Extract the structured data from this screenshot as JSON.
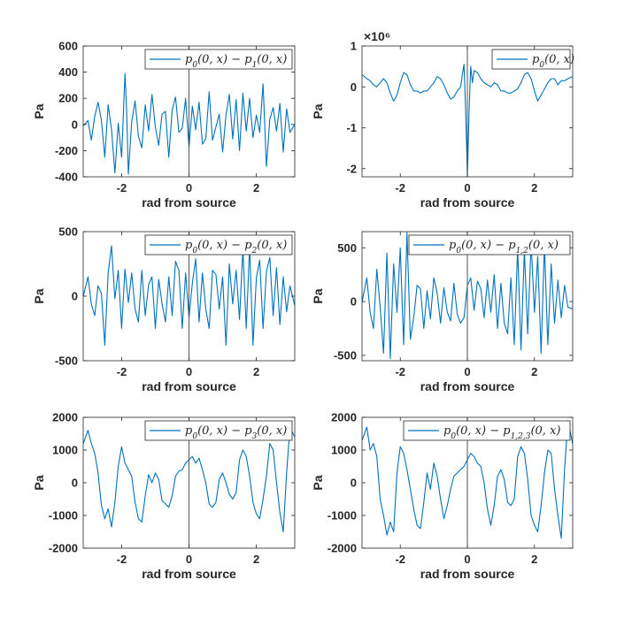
{
  "figure": {
    "background": "#ffffff",
    "line_color": "#0072BD",
    "axis_color": "#262626"
  },
  "chart_data": [
    {
      "type": "line",
      "xlabel": "rad from source",
      "ylabel": "Pa",
      "xlim": [
        -3.14159,
        3.14159
      ],
      "ylim": [
        -400,
        600
      ],
      "xticks": [
        -2,
        0,
        2
      ],
      "xtick_labels": [
        "-2",
        "0",
        "2"
      ],
      "yticks": [
        -400,
        -200,
        0,
        200,
        400,
        600
      ],
      "ytick_labels": [
        "-400",
        "-200",
        "0",
        "200",
        "400",
        "600"
      ],
      "grid": false,
      "legend_position": "top-right",
      "series": [
        {
          "name": "p0(0,x) − p1(0,x)",
          "x": [
            -3.14,
            -3.0,
            -2.9,
            -2.8,
            -2.7,
            -2.6,
            -2.5,
            -2.4,
            -2.3,
            -2.2,
            -2.1,
            -2.0,
            -1.9,
            -1.85,
            -1.8,
            -1.7,
            -1.6,
            -1.5,
            -1.4,
            -1.3,
            -1.2,
            -1.1,
            -1.0,
            -0.9,
            -0.8,
            -0.7,
            -0.6,
            -0.5,
            -0.4,
            -0.3,
            -0.2,
            -0.1,
            0.0,
            0.1,
            0.2,
            0.3,
            0.4,
            0.5,
            0.6,
            0.7,
            0.8,
            0.9,
            1.0,
            1.1,
            1.2,
            1.3,
            1.4,
            1.5,
            1.6,
            1.7,
            1.8,
            1.9,
            2.0,
            2.1,
            2.2,
            2.3,
            2.4,
            2.5,
            2.6,
            2.7,
            2.8,
            2.9,
            3.0,
            3.14
          ],
          "y": [
            -10,
            30,
            -120,
            60,
            170,
            30,
            -250,
            150,
            -40,
            -370,
            10,
            -250,
            390,
            100,
            -380,
            20,
            180,
            -90,
            -180,
            150,
            -50,
            230,
            -20,
            -160,
            80,
            100,
            -250,
            110,
            210,
            -60,
            -30,
            200,
            -180,
            140,
            -40,
            170,
            -150,
            -110,
            250,
            -120,
            -20,
            80,
            -210,
            70,
            230,
            -110,
            190,
            -200,
            240,
            -50,
            200,
            -100,
            70,
            -60,
            310,
            -320,
            40,
            130,
            -50,
            160,
            -210,
            120,
            -60,
            0
          ]
        }
      ]
    },
    {
      "type": "line",
      "xlabel": "rad from source",
      "ylabel": "Pa",
      "axis_exponent": "×10⁶",
      "xlim": [
        -3.14159,
        3.14159
      ],
      "ylim": [
        -2.2,
        1
      ],
      "xticks": [
        -2,
        0,
        2
      ],
      "xtick_labels": [
        "-2",
        "0",
        "2"
      ],
      "yticks": [
        -2,
        -1,
        0,
        1
      ],
      "ytick_labels": [
        "-2",
        "-1",
        "0",
        "1"
      ],
      "grid": false,
      "legend_position": "top-right",
      "series": [
        {
          "name": "p0(0,x)",
          "x": [
            -3.14,
            -3.0,
            -2.9,
            -2.8,
            -2.7,
            -2.6,
            -2.5,
            -2.4,
            -2.3,
            -2.2,
            -2.1,
            -2.0,
            -1.9,
            -1.8,
            -1.7,
            -1.6,
            -1.5,
            -1.4,
            -1.3,
            -1.2,
            -1.1,
            -1.0,
            -0.9,
            -0.8,
            -0.7,
            -0.6,
            -0.5,
            -0.4,
            -0.3,
            -0.2,
            -0.15,
            -0.1,
            -0.05,
            -0.02,
            0.0,
            0.02,
            0.05,
            0.1,
            0.15,
            0.2,
            0.3,
            0.4,
            0.5,
            0.6,
            0.7,
            0.8,
            0.9,
            1.0,
            1.1,
            1.2,
            1.3,
            1.4,
            1.5,
            1.6,
            1.7,
            1.8,
            1.9,
            2.0,
            2.1,
            2.2,
            2.3,
            2.4,
            2.5,
            2.6,
            2.7,
            2.8,
            2.9,
            3.0,
            3.14
          ],
          "y": [
            0.3,
            0.2,
            0.15,
            0.05,
            0.0,
            0.1,
            0.2,
            0.1,
            -0.15,
            -0.35,
            -0.2,
            0.1,
            0.35,
            0.3,
            0.05,
            -0.1,
            -0.1,
            -0.15,
            -0.1,
            -0.1,
            0.0,
            0.1,
            0.25,
            0.2,
            0.05,
            -0.15,
            -0.3,
            -0.25,
            -0.1,
            0.0,
            0.3,
            0.55,
            -0.6,
            -1.5,
            -2.2,
            -1.6,
            -0.6,
            0.5,
            0.1,
            0.4,
            0.35,
            0.2,
            0.1,
            0.05,
            0.0,
            0.1,
            0.05,
            -0.1,
            -0.1,
            -0.15,
            -0.15,
            -0.1,
            -0.05,
            0.1,
            0.3,
            0.35,
            0.2,
            -0.1,
            -0.35,
            -0.2,
            -0.05,
            0.1,
            0.2,
            0.2,
            0.05,
            0.15,
            0.15,
            0.2,
            0.25
          ]
        }
      ]
    },
    {
      "type": "line",
      "xlabel": "rad from source",
      "ylabel": "Pa",
      "xlim": [
        -3.14159,
        3.14159
      ],
      "ylim": [
        -500,
        500
      ],
      "xticks": [
        -2,
        0,
        2
      ],
      "xtick_labels": [
        "-2",
        "0",
        "2"
      ],
      "yticks": [
        -500,
        0,
        500
      ],
      "ytick_labels": [
        "-500",
        "0",
        "500"
      ],
      "grid": false,
      "legend_position": "top-right",
      "series": [
        {
          "name": "p0(0,x) − p2(0,x)",
          "x": [
            -3.14,
            -3.0,
            -2.9,
            -2.8,
            -2.7,
            -2.6,
            -2.5,
            -2.4,
            -2.3,
            -2.2,
            -2.1,
            -2.0,
            -1.9,
            -1.8,
            -1.7,
            -1.6,
            -1.5,
            -1.4,
            -1.3,
            -1.2,
            -1.1,
            -1.0,
            -0.9,
            -0.8,
            -0.7,
            -0.6,
            -0.5,
            -0.4,
            -0.3,
            -0.2,
            -0.1,
            0.0,
            0.1,
            0.2,
            0.3,
            0.4,
            0.5,
            0.6,
            0.7,
            0.8,
            0.9,
            1.0,
            1.1,
            1.2,
            1.3,
            1.4,
            1.5,
            1.6,
            1.7,
            1.8,
            1.9,
            2.0,
            2.1,
            2.2,
            2.3,
            2.4,
            2.5,
            2.6,
            2.7,
            2.8,
            2.9,
            3.0,
            3.14
          ],
          "y": [
            0,
            150,
            -60,
            -150,
            80,
            20,
            -380,
            180,
            390,
            -20,
            200,
            -250,
            210,
            -50,
            180,
            -100,
            -200,
            200,
            -150,
            90,
            150,
            -250,
            130,
            -60,
            -200,
            150,
            -150,
            270,
            200,
            -250,
            180,
            -170,
            100,
            290,
            -200,
            180,
            -100,
            -250,
            200,
            170,
            -100,
            150,
            -380,
            250,
            -60,
            200,
            -180,
            370,
            -250,
            380,
            -380,
            140,
            280,
            -250,
            190,
            300,
            -150,
            220,
            -220,
            150,
            -120,
            80,
            -70
          ]
        }
      ]
    },
    {
      "type": "line",
      "xlabel": "rad from source",
      "ylabel": "Pa",
      "xlim": [
        -3.14159,
        3.14159
      ],
      "ylim": [
        -550,
        650
      ],
      "xticks": [
        -2,
        0,
        2
      ],
      "xtick_labels": [
        "-2",
        "0",
        "2"
      ],
      "yticks": [
        -500,
        0,
        500
      ],
      "ytick_labels": [
        "-500",
        "0",
        "500"
      ],
      "grid": false,
      "legend_position": "top-right",
      "series": [
        {
          "name": "p0(0,x) − p1,2(0,x)",
          "x": [
            -3.14,
            -3.0,
            -2.9,
            -2.8,
            -2.7,
            -2.6,
            -2.5,
            -2.4,
            -2.3,
            -2.2,
            -2.1,
            -2.0,
            -1.9,
            -1.8,
            -1.7,
            -1.6,
            -1.5,
            -1.4,
            -1.3,
            -1.2,
            -1.1,
            -1.0,
            -0.9,
            -0.8,
            -0.7,
            -0.6,
            -0.5,
            -0.4,
            -0.3,
            -0.2,
            -0.1,
            0.0,
            0.1,
            0.2,
            0.3,
            0.4,
            0.5,
            0.6,
            0.7,
            0.8,
            0.9,
            1.0,
            1.1,
            1.2,
            1.3,
            1.4,
            1.5,
            1.6,
            1.7,
            1.8,
            1.9,
            2.0,
            2.1,
            2.2,
            2.3,
            2.4,
            2.5,
            2.6,
            2.7,
            2.8,
            2.9,
            3.0,
            3.14
          ],
          "y": [
            0,
            220,
            -100,
            -250,
            300,
            -50,
            -480,
            450,
            -530,
            350,
            -100,
            500,
            -400,
            640,
            -350,
            -150,
            150,
            120,
            -250,
            100,
            -160,
            220,
            80,
            -200,
            130,
            -100,
            -180,
            170,
            -120,
            -200,
            -150,
            150,
            220,
            -80,
            190,
            120,
            -150,
            200,
            -100,
            250,
            -250,
            170,
            -200,
            -300,
            220,
            -400,
            500,
            -450,
            480,
            -300,
            550,
            -100,
            420,
            -480,
            520,
            -400,
            350,
            -200,
            200,
            -150,
            150,
            -50,
            -70
          ]
        }
      ]
    },
    {
      "type": "line",
      "xlabel": "rad from source",
      "ylabel": "Pa",
      "xlim": [
        -3.14159,
        3.14159
      ],
      "ylim": [
        -2000,
        2000
      ],
      "xticks": [
        -2,
        0,
        2
      ],
      "xtick_labels": [
        "-2",
        "0",
        "2"
      ],
      "yticks": [
        -2000,
        -1000,
        0,
        1000,
        2000
      ],
      "ytick_labels": [
        "-2000",
        "-1000",
        "0",
        "1000",
        "2000"
      ],
      "grid": false,
      "legend_position": "top-right",
      "series": [
        {
          "name": "p0(0,x) − p3(0,x)",
          "x": [
            -3.14,
            -3.0,
            -2.9,
            -2.8,
            -2.7,
            -2.6,
            -2.5,
            -2.4,
            -2.3,
            -2.2,
            -2.1,
            -2.0,
            -1.9,
            -1.8,
            -1.7,
            -1.6,
            -1.5,
            -1.4,
            -1.3,
            -1.2,
            -1.1,
            -1.0,
            -0.9,
            -0.8,
            -0.7,
            -0.6,
            -0.5,
            -0.4,
            -0.3,
            -0.2,
            -0.1,
            0.0,
            0.1,
            0.2,
            0.3,
            0.4,
            0.5,
            0.6,
            0.7,
            0.8,
            0.9,
            1.0,
            1.1,
            1.2,
            1.3,
            1.4,
            1.5,
            1.6,
            1.7,
            1.8,
            1.9,
            2.0,
            2.1,
            2.2,
            2.3,
            2.4,
            2.5,
            2.6,
            2.7,
            2.8,
            2.9,
            3.0,
            3.14
          ],
          "y": [
            1200,
            1600,
            1200,
            900,
            300,
            -700,
            -1100,
            -800,
            -1350,
            -600,
            500,
            1100,
            600,
            400,
            200,
            -600,
            -1100,
            -1200,
            -400,
            250,
            0,
            300,
            100,
            -550,
            -650,
            -750,
            -400,
            200,
            350,
            400,
            600,
            700,
            800,
            600,
            750,
            400,
            0,
            -650,
            -750,
            -600,
            100,
            300,
            0,
            -350,
            -500,
            -300,
            700,
            1000,
            800,
            200,
            -600,
            -950,
            -1100,
            -500,
            200,
            1200,
            1000,
            0,
            -900,
            -1500,
            300,
            1700,
            1400
          ]
        }
      ]
    },
    {
      "type": "line",
      "xlabel": "rad from source",
      "ylabel": "Pa",
      "xlim": [
        -3.14159,
        3.14159
      ],
      "ylim": [
        -2000,
        2000
      ],
      "xticks": [
        -2,
        0,
        2
      ],
      "xtick_labels": [
        "-2",
        "0",
        "2"
      ],
      "yticks": [
        -2000,
        -1000,
        0,
        1000,
        2000
      ],
      "ytick_labels": [
        "-2000",
        "-1000",
        "0",
        "1000",
        "2000"
      ],
      "grid": false,
      "legend_position": "top-right",
      "series": [
        {
          "name": "p0(0,x) − p1,2,3(0,x)",
          "x": [
            -3.14,
            -3.0,
            -2.9,
            -2.8,
            -2.7,
            -2.6,
            -2.5,
            -2.4,
            -2.3,
            -2.2,
            -2.1,
            -2.0,
            -1.9,
            -1.8,
            -1.7,
            -1.6,
            -1.5,
            -1.4,
            -1.3,
            -1.2,
            -1.1,
            -1.0,
            -0.9,
            -0.8,
            -0.7,
            -0.6,
            -0.5,
            -0.4,
            -0.3,
            -0.2,
            -0.1,
            0.0,
            0.1,
            0.2,
            0.3,
            0.4,
            0.5,
            0.6,
            0.7,
            0.8,
            0.9,
            1.0,
            1.1,
            1.2,
            1.3,
            1.4,
            1.5,
            1.6,
            1.7,
            1.8,
            1.9,
            2.0,
            2.1,
            2.2,
            2.3,
            2.4,
            2.5,
            2.6,
            2.7,
            2.8,
            2.9,
            3.0,
            3.14
          ],
          "y": [
            1300,
            1700,
            1000,
            1200,
            800,
            -500,
            -1000,
            -1600,
            -1200,
            -1500,
            300,
            1100,
            900,
            400,
            -200,
            -800,
            -1300,
            -1400,
            -600,
            300,
            -200,
            600,
            200,
            -500,
            -1100,
            -700,
            -200,
            200,
            300,
            400,
            500,
            700,
            900,
            800,
            600,
            500,
            0,
            -800,
            -1300,
            -700,
            200,
            400,
            100,
            -600,
            -700,
            -500,
            800,
            1100,
            900,
            100,
            -1000,
            -1300,
            -1500,
            -700,
            300,
            1000,
            900,
            -200,
            -1000,
            -1700,
            400,
            1900,
            1200
          ]
        }
      ]
    }
  ]
}
